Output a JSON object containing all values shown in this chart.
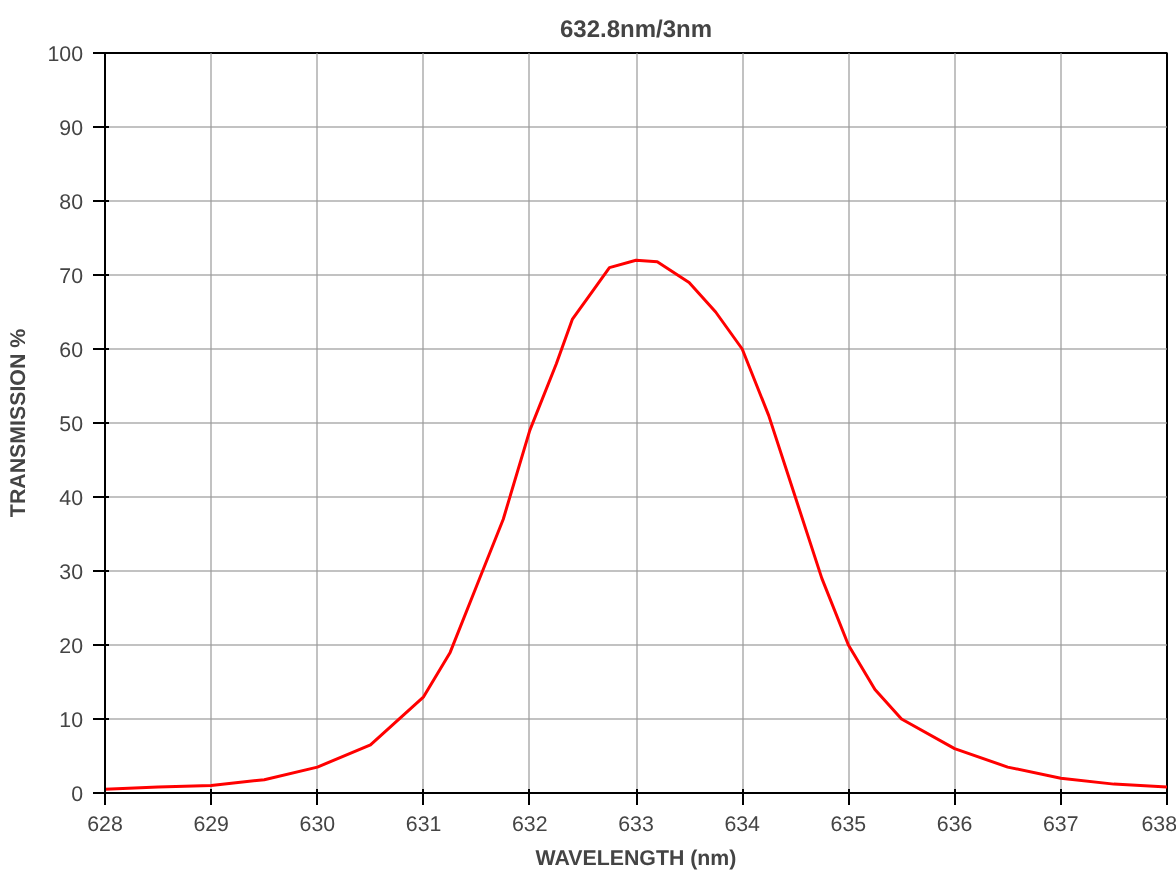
{
  "chart_data": {
    "type": "line",
    "title": "632.8nm/3nm",
    "xlabel": "WAVELENGTH (nm)",
    "ylabel": "TRANSMISSION %",
    "x": [
      628,
      628.5,
      629,
      629.5,
      630,
      630.5,
      631,
      631.25,
      631.5,
      631.75,
      632,
      632.25,
      632.4,
      632.6,
      632.75,
      633,
      633.2,
      633.5,
      633.75,
      634,
      634.25,
      634.5,
      634.75,
      635,
      635.25,
      635.5,
      636,
      636.5,
      637,
      637.5,
      638
    ],
    "series": [
      {
        "color": "#ff0000",
        "values": [
          0.5,
          0.8,
          1,
          1.8,
          3.5,
          6.5,
          13,
          19,
          28,
          37,
          49,
          58,
          64,
          68,
          71,
          72,
          71.8,
          69,
          65,
          60,
          51,
          40,
          29,
          20,
          14,
          10,
          6,
          3.5,
          2,
          1.2,
          0.8
        ]
      }
    ],
    "xlim": [
      628,
      638
    ],
    "ylim": [
      0,
      100
    ],
    "xticks": [
      628,
      629,
      630,
      631,
      632,
      633,
      634,
      635,
      636,
      637,
      638
    ],
    "yticks": [
      0,
      10,
      20,
      30,
      40,
      50,
      60,
      70,
      80,
      90,
      100
    ],
    "grid": true,
    "marker": "none",
    "line_style": "solid"
  }
}
